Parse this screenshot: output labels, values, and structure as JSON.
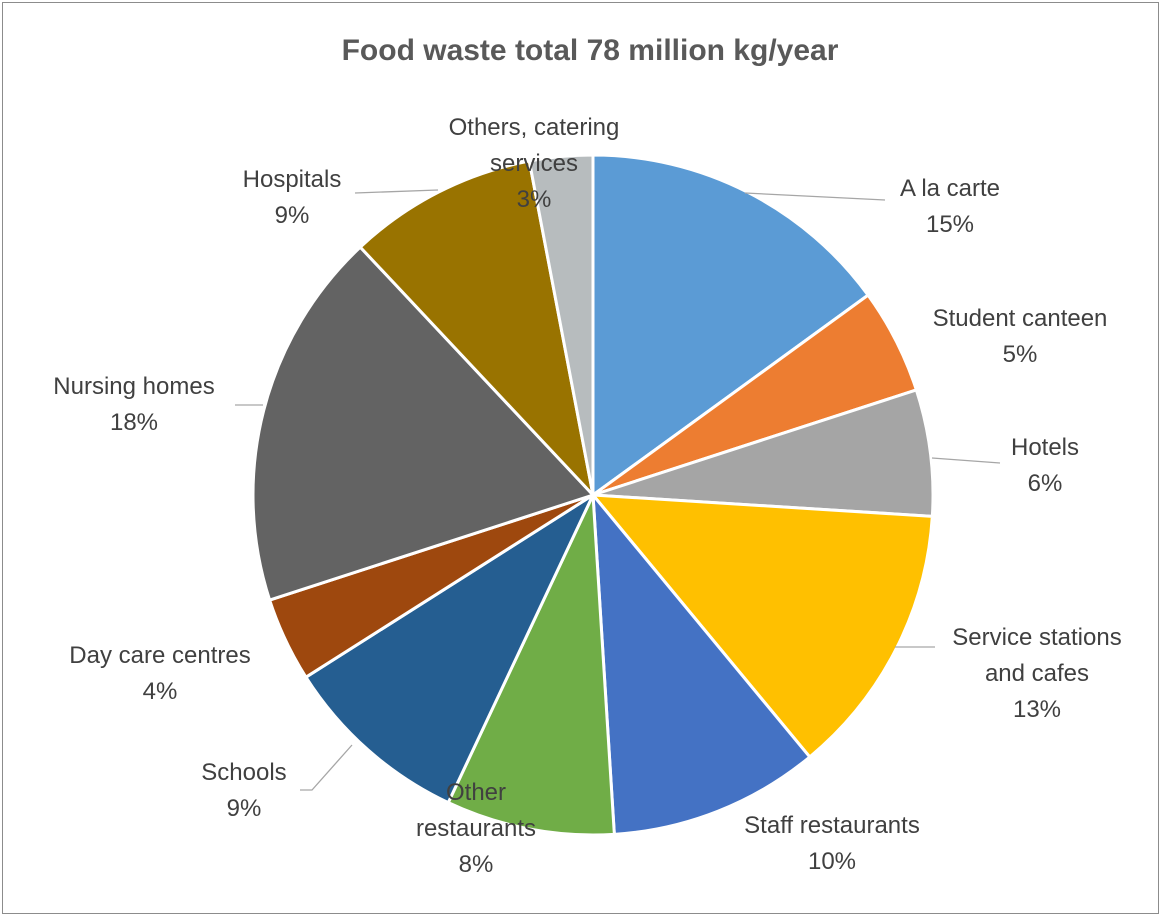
{
  "chart_data": {
    "type": "pie",
    "title": "Food waste total 78 million kg/year",
    "start_angle_deg": 0,
    "direction": "clockwise",
    "slices": [
      {
        "label": "A la carte",
        "label_lines": [
          "A la carte"
        ],
        "value": 15,
        "value_label": "15%",
        "color": "#5B9BD5"
      },
      {
        "label": "Student canteen",
        "label_lines": [
          "Student canteen"
        ],
        "value": 5,
        "value_label": "5%",
        "color": "#ED7D31"
      },
      {
        "label": "Hotels",
        "label_lines": [
          "Hotels"
        ],
        "value": 6,
        "value_label": "6%",
        "color": "#A5A5A5"
      },
      {
        "label": "Service stations and cafes",
        "label_lines": [
          "Service stations",
          "and cafes"
        ],
        "value": 13,
        "value_label": "13%",
        "color": "#FFC000"
      },
      {
        "label": "Staff restaurants",
        "label_lines": [
          "Staff restaurants"
        ],
        "value": 10,
        "value_label": "10%",
        "color": "#4472C4"
      },
      {
        "label": "Other restaurants",
        "label_lines": [
          "Other",
          "restaurants"
        ],
        "value": 8,
        "value_label": "8%",
        "color": "#70AD47"
      },
      {
        "label": "Schools",
        "label_lines": [
          "Schools"
        ],
        "value": 9,
        "value_label": "9%",
        "color": "#255E91"
      },
      {
        "label": "Day care centres",
        "label_lines": [
          "Day care centres"
        ],
        "value": 4,
        "value_label": "4%",
        "color": "#9E480E"
      },
      {
        "label": "Nursing homes",
        "label_lines": [
          "Nursing homes"
        ],
        "value": 18,
        "value_label": "18%",
        "color": "#636363"
      },
      {
        "label": "Hospitals",
        "label_lines": [
          "Hospitals"
        ],
        "value": 9,
        "value_label": "9%",
        "color": "#997300"
      },
      {
        "label": "Others, catering services",
        "label_lines": [
          "Others, catering",
          "services"
        ],
        "value": 3,
        "value_label": "3%",
        "color": "#B7BCBE"
      }
    ]
  }
}
